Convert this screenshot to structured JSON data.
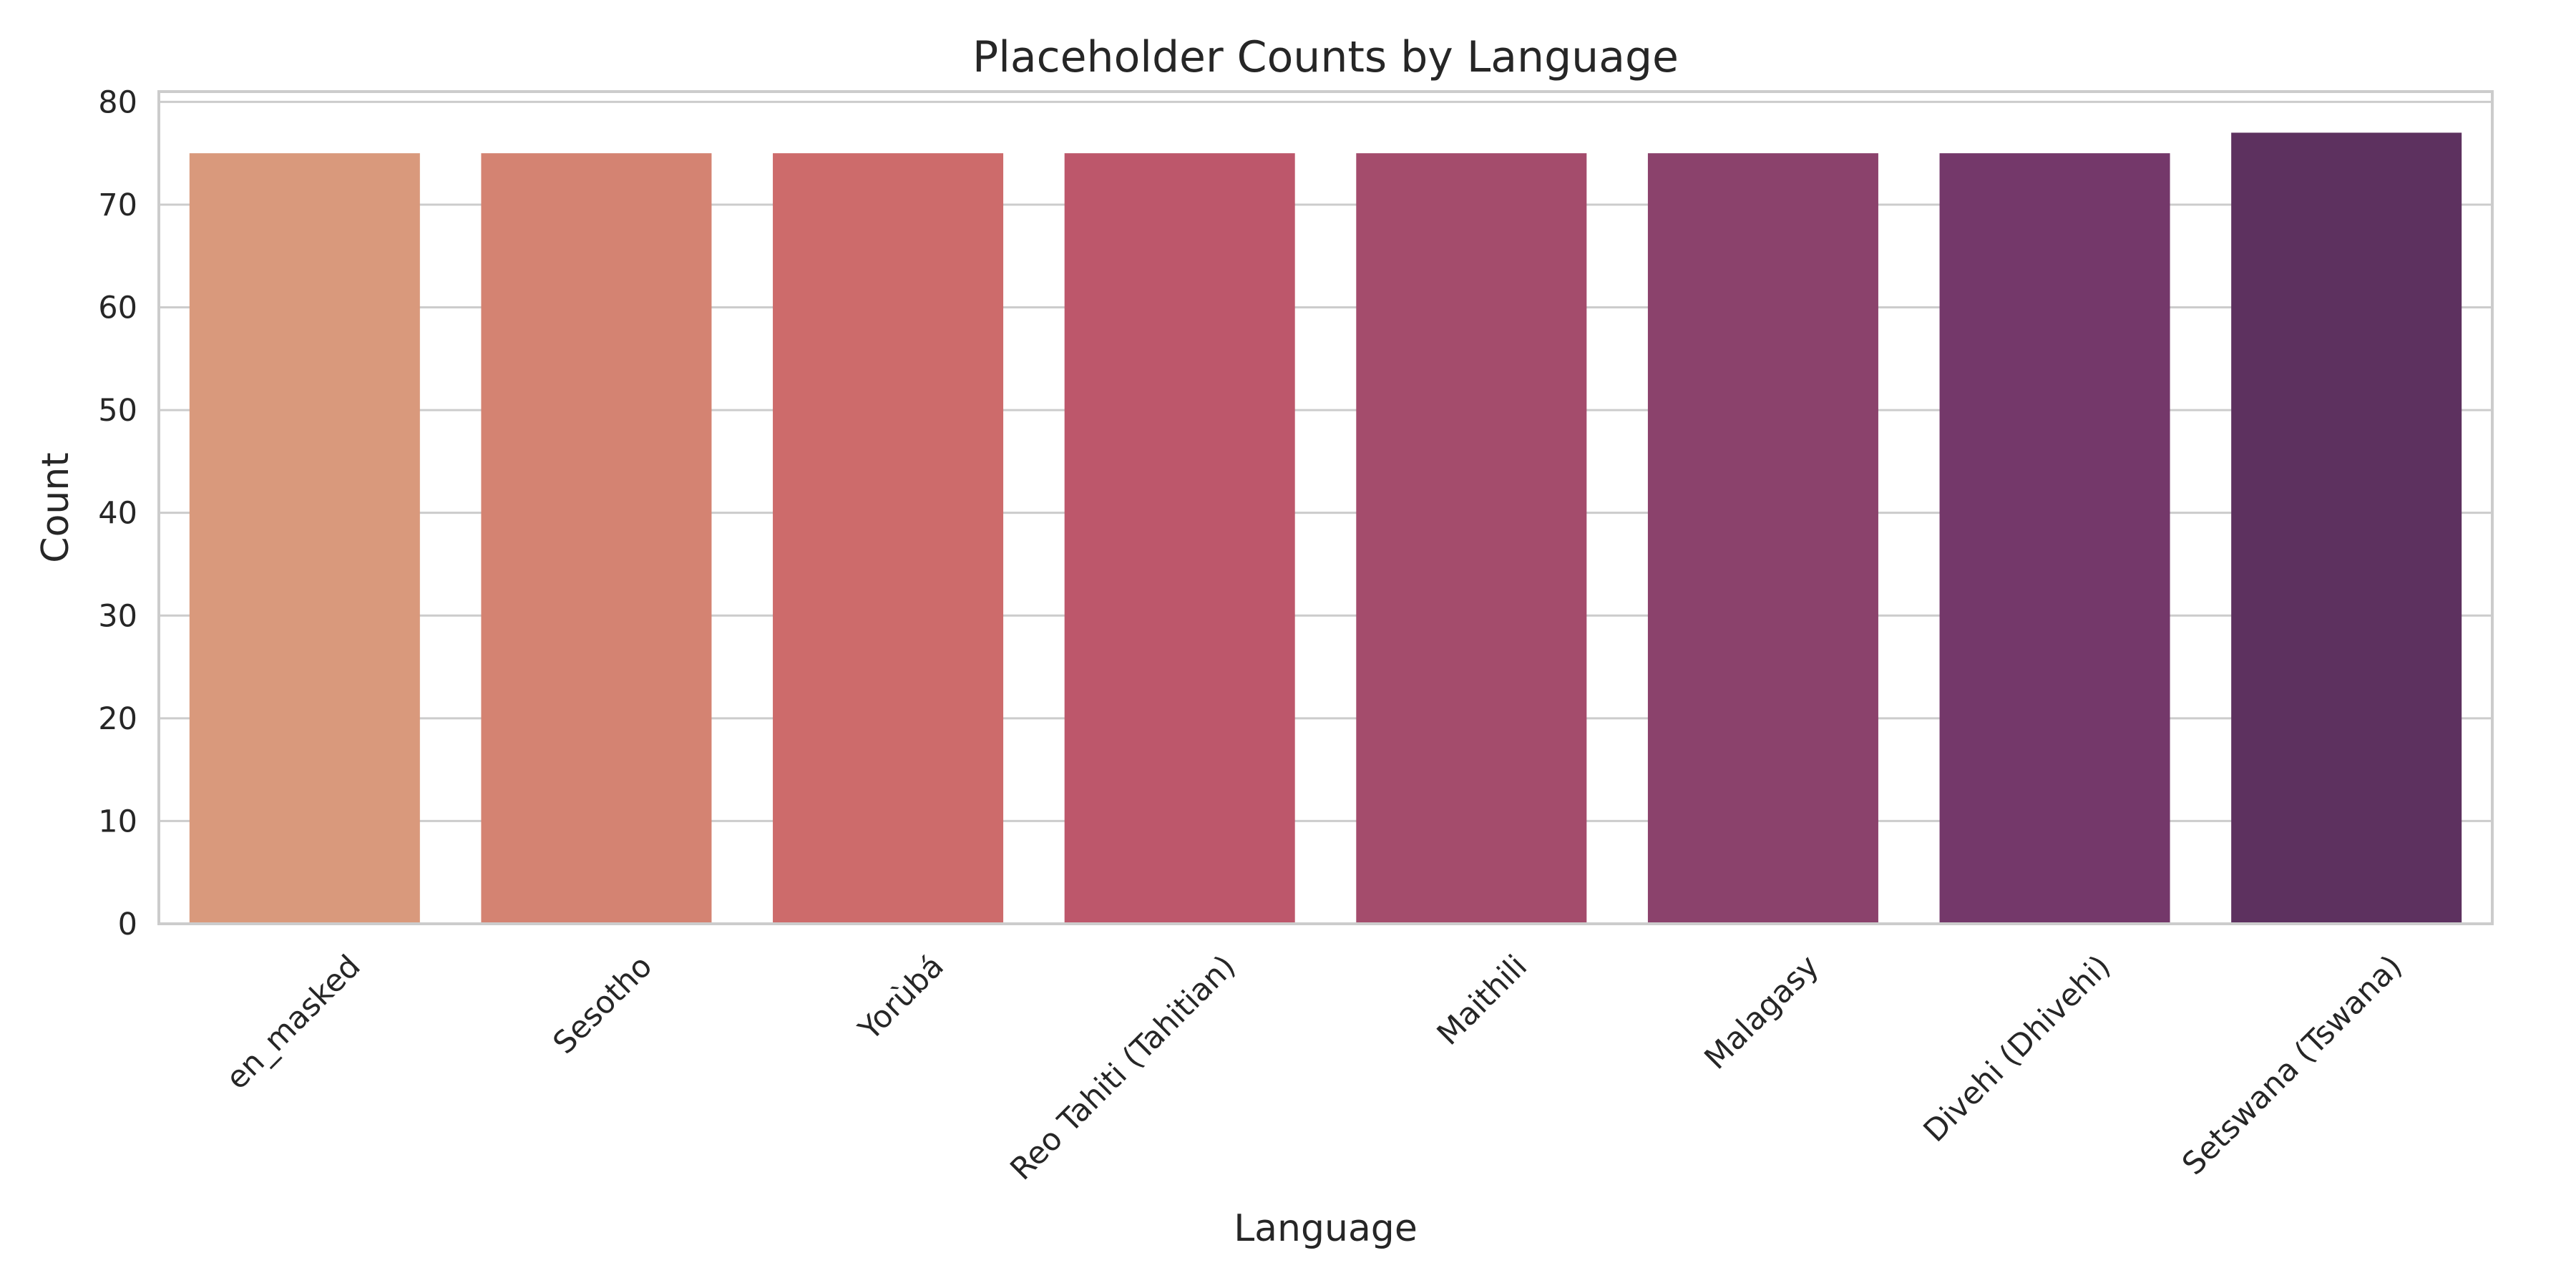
{
  "chart_data": {
    "type": "bar",
    "title": "Placeholder Counts by Language",
    "xlabel": "Language",
    "ylabel": "Count",
    "ylim": [
      0,
      81
    ],
    "yticks": [
      0,
      10,
      20,
      30,
      40,
      50,
      60,
      70,
      80
    ],
    "grid": "horizontal",
    "categories": [
      "en_masked",
      "Sesotho",
      "Yorùbá",
      "Reo Tahiti (Tahitian)",
      "Maithili",
      "Malagasy",
      "Divehi (Dhivehi)",
      "Setswana (Tswana)"
    ],
    "values": [
      75,
      75,
      75,
      75,
      75,
      75,
      75,
      77
    ],
    "colors": [
      "#d9997c",
      "#d48372",
      "#cd6b6b",
      "#bd576b",
      "#a44c6c",
      "#8b426c",
      "#74386a",
      "#5d315f"
    ]
  }
}
